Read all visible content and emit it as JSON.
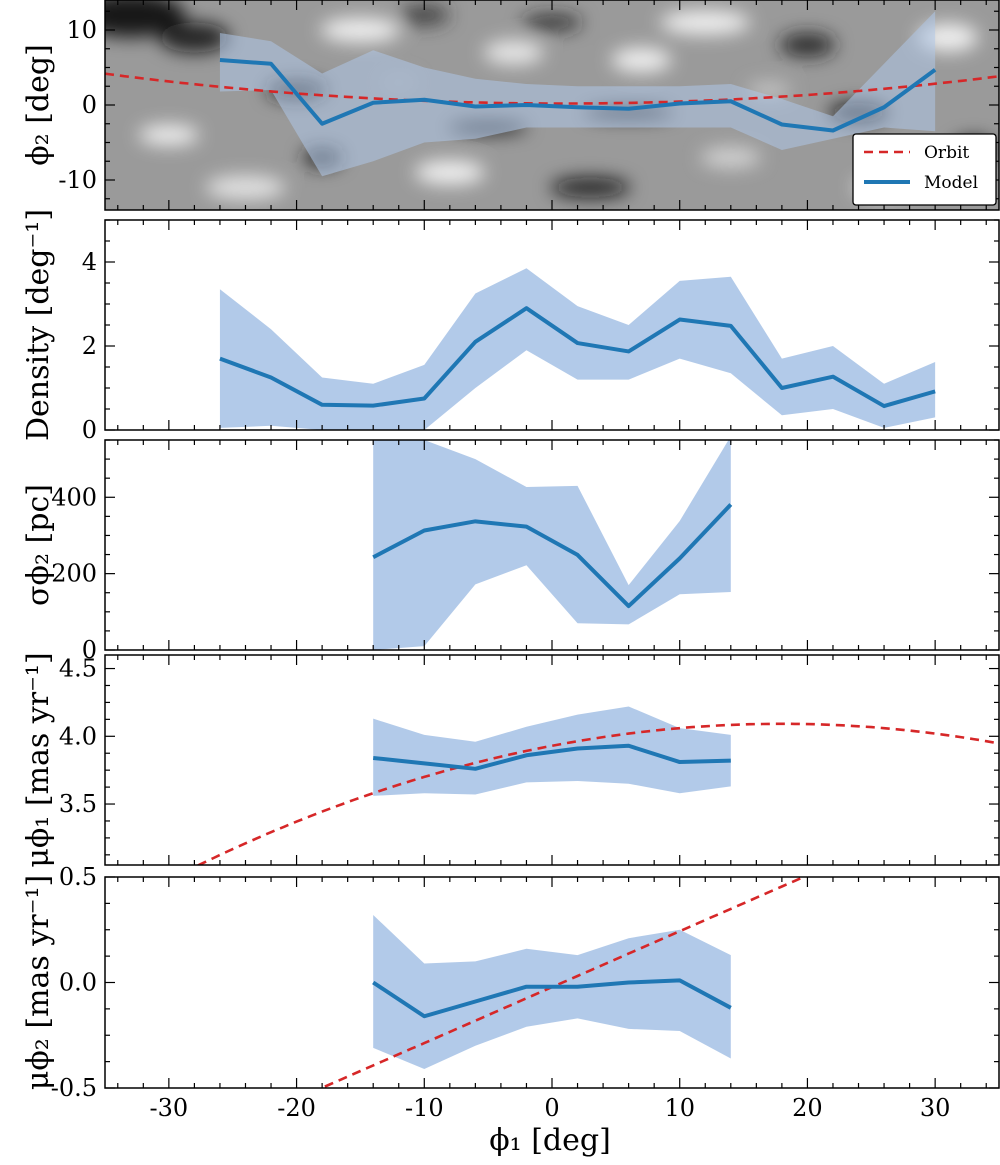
{
  "colors": {
    "model_line": "#1f77b4",
    "band_fill": "#aec7e8",
    "orbit_line": "#d62728",
    "axis": "#000000"
  },
  "chart_data": [
    {
      "name": "phi2-track",
      "type": "line",
      "background": "grayscale density map",
      "ylabel": "ϕ₂ [deg]",
      "xlim": [
        -35,
        35
      ],
      "ylim": [
        -14,
        14
      ],
      "yticks": [
        10,
        0,
        -10
      ],
      "ytick_labels": [
        "10",
        "0",
        "-10"
      ],
      "x": [
        -26,
        -22,
        -18,
        -14,
        -10,
        -6,
        -2,
        2,
        6,
        10,
        14,
        18,
        22,
        26,
        30
      ],
      "series": [
        {
          "name": "Model",
          "values": [
            6.0,
            5.5,
            -2.5,
            0.3,
            0.7,
            -0.2,
            0.0,
            -0.3,
            -0.5,
            0.2,
            0.5,
            -2.6,
            -3.4,
            -0.3,
            4.7
          ]
        },
        {
          "name": "band_low",
          "values": [
            1.8,
            2.0,
            -9.5,
            -7.5,
            -5.0,
            -4.5,
            -3.0,
            -3.0,
            -3.0,
            -3.0,
            -3.0,
            -6.0,
            -4.5,
            -3.0,
            -3.5
          ]
        },
        {
          "name": "band_high",
          "values": [
            9.6,
            8.5,
            4.2,
            7.3,
            5.0,
            3.5,
            2.8,
            2.5,
            2.5,
            2.5,
            2.8,
            0.8,
            -1.5,
            5.5,
            12.5
          ]
        }
      ],
      "orbit": {
        "name": "Orbit",
        "a": 0.2,
        "b": -0.005,
        "c": 0.0031
      },
      "legend": {
        "placement": "bottom-right",
        "entries": [
          "Orbit",
          "Model"
        ]
      }
    },
    {
      "name": "density",
      "type": "line",
      "ylabel": "Density [deg⁻¹]",
      "xlim": [
        -35,
        35
      ],
      "ylim": [
        0,
        5
      ],
      "yticks": [
        0,
        2,
        4
      ],
      "ytick_labels": [
        "0",
        "2",
        "4"
      ],
      "x": [
        -26,
        -22,
        -18,
        -14,
        -10,
        -6,
        -2,
        2,
        6,
        10,
        14,
        18,
        22,
        26,
        30
      ],
      "series": [
        {
          "name": "Model",
          "values": [
            1.7,
            1.25,
            0.6,
            0.58,
            0.75,
            2.1,
            2.9,
            2.07,
            1.87,
            2.63,
            2.48,
            1.0,
            1.27,
            0.57,
            0.92
          ]
        },
        {
          "name": "band_low",
          "values": [
            0.05,
            0.1,
            0.0,
            0.0,
            0.0,
            1.0,
            1.9,
            1.2,
            1.2,
            1.7,
            1.35,
            0.35,
            0.5,
            0.05,
            0.3
          ]
        },
        {
          "name": "band_high",
          "values": [
            3.35,
            2.4,
            1.25,
            1.1,
            1.55,
            3.25,
            3.85,
            2.95,
            2.5,
            3.55,
            3.65,
            1.7,
            2.0,
            1.1,
            1.62
          ]
        }
      ]
    },
    {
      "name": "sigma-phi2",
      "type": "line",
      "ylabel": "σϕ₂ [pc]",
      "xlim": [
        -35,
        35
      ],
      "ylim": [
        0,
        550
      ],
      "yticks": [
        0,
        200,
        400
      ],
      "ytick_labels": [
        "0",
        "200",
        "400"
      ],
      "x": [
        -14,
        -10,
        -6,
        -2,
        2,
        6,
        10,
        14
      ],
      "series": [
        {
          "name": "Model",
          "values": [
            243,
            313,
            337,
            323,
            249,
            115,
            240,
            381
          ]
        },
        {
          "name": "band_low",
          "values": [
            0,
            10,
            172,
            222,
            70,
            67,
            146,
            152
          ]
        },
        {
          "name": "band_high",
          "values": [
            550,
            550,
            500,
            427,
            430,
            170,
            338,
            560
          ]
        }
      ]
    },
    {
      "name": "mu-phi1",
      "type": "line",
      "ylabel": "μϕ₁ [mas yr⁻¹]",
      "xlim": [
        -35,
        35
      ],
      "ylim": [
        3.05,
        4.6
      ],
      "yticks": [
        3.5,
        4.0,
        4.5
      ],
      "ytick_labels": [
        "3.5",
        "4.0",
        "4.5"
      ],
      "x": [
        -14,
        -10,
        -6,
        -2,
        2,
        6,
        10,
        14
      ],
      "series": [
        {
          "name": "Model",
          "values": [
            3.84,
            3.8,
            3.76,
            3.86,
            3.91,
            3.93,
            3.81,
            3.82
          ]
        },
        {
          "name": "band_low",
          "values": [
            3.56,
            3.58,
            3.57,
            3.66,
            3.67,
            3.65,
            3.58,
            3.63
          ]
        },
        {
          "name": "band_high",
          "values": [
            4.13,
            4.01,
            3.96,
            4.07,
            4.16,
            4.22,
            4.06,
            4.01
          ]
        }
      ],
      "orbit": {
        "name": "Orbit",
        "a": 3.93,
        "b": 0.018,
        "c": -0.0005
      }
    },
    {
      "name": "mu-phi2",
      "type": "line",
      "ylabel": "μϕ₂ [mas yr⁻¹]",
      "xlim": [
        -35,
        35
      ],
      "ylim": [
        -0.5,
        0.5
      ],
      "yticks": [
        0.5,
        0.0,
        -0.5
      ],
      "ytick_labels": [
        "0.5",
        "0.0",
        "-0.5"
      ],
      "x": [
        -14,
        -10,
        -6,
        -2,
        2,
        6,
        10,
        14
      ],
      "series": [
        {
          "name": "Model",
          "values": [
            0.0,
            -0.16,
            -0.09,
            -0.02,
            -0.02,
            0.0,
            0.01,
            -0.12
          ]
        },
        {
          "name": "band_low",
          "values": [
            -0.31,
            -0.41,
            -0.3,
            -0.21,
            -0.17,
            -0.22,
            -0.23,
            -0.36
          ]
        },
        {
          "name": "band_high",
          "values": [
            0.32,
            0.09,
            0.1,
            0.16,
            0.13,
            0.21,
            0.25,
            0.13
          ]
        }
      ],
      "orbit": {
        "name": "Orbit",
        "a": -0.022,
        "b": 0.0265,
        "c": 0.0
      }
    }
  ],
  "shared_x_axis": {
    "xlabel": "ϕ₁ [deg]",
    "ticks": [
      -30,
      -20,
      -10,
      0,
      10,
      20,
      30
    ],
    "tick_labels": [
      "-30",
      "-20",
      "-10",
      "0",
      "10",
      "20",
      "30"
    ]
  }
}
